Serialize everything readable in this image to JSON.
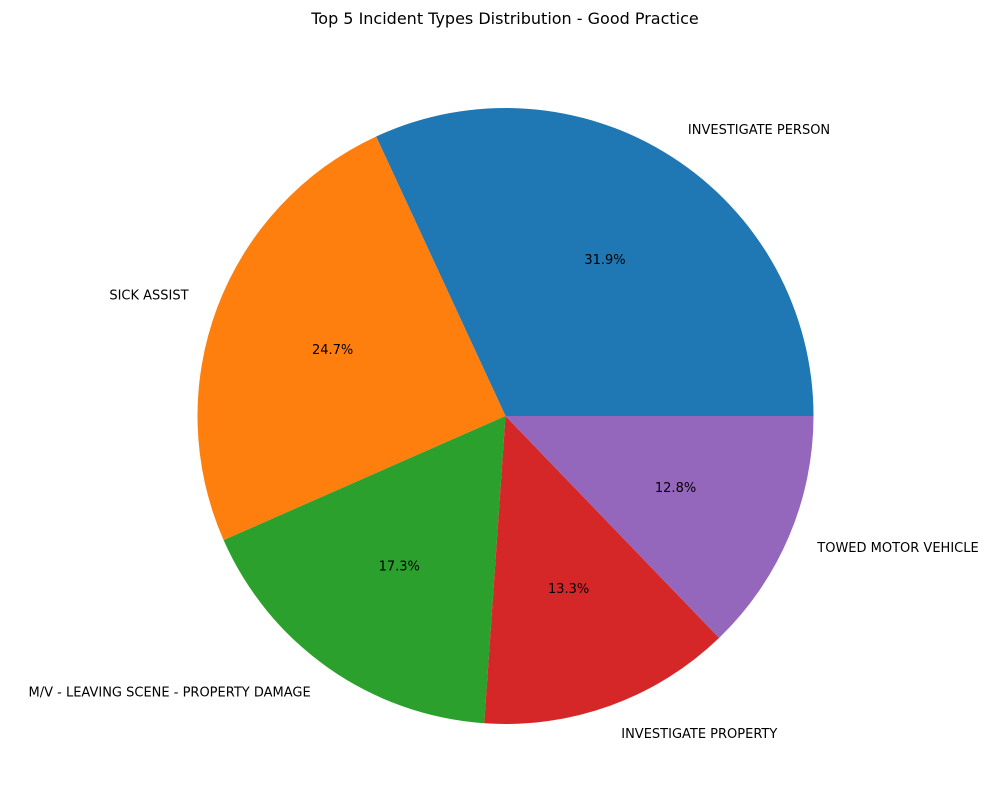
{
  "chart_data": {
    "type": "pie",
    "title": "Top 5 Incident Types Distribution - Good Practice",
    "categories": [
      "INVESTIGATE PERSON",
      "SICK ASSIST",
      "M/V - LEAVING SCENE - PROPERTY DAMAGE",
      "INVESTIGATE PROPERTY",
      "TOWED MOTOR VEHICLE"
    ],
    "values": [
      31.9,
      24.7,
      17.3,
      13.3,
      12.8
    ],
    "percent_labels": [
      "31.9%",
      "24.7%",
      "17.3%",
      "13.3%",
      "12.8%"
    ],
    "colors": [
      "#1f77b4",
      "#ff7f0e",
      "#2ca02c",
      "#d62728",
      "#9467bd"
    ],
    "start_angle_deg": 0,
    "direction": "counterclockwise",
    "legend": "none"
  }
}
